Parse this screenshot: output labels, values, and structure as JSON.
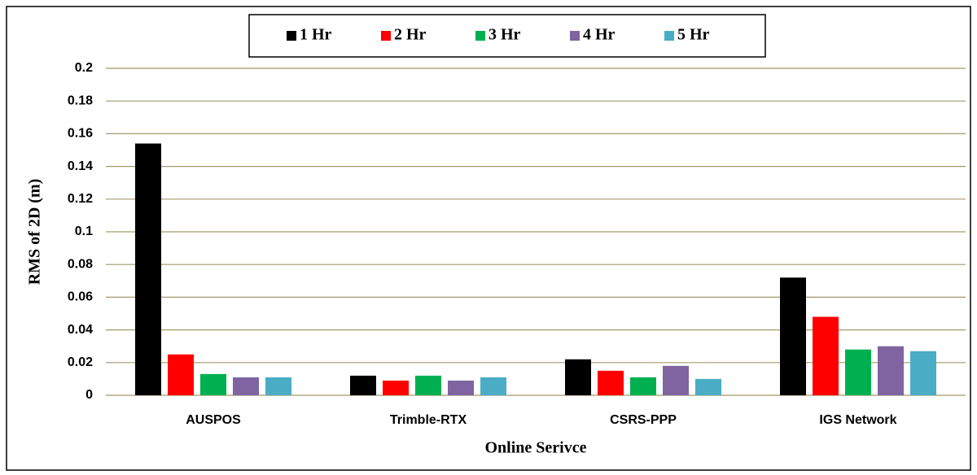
{
  "chart_data": {
    "type": "bar",
    "x_label": "Online Serivce",
    "y_label": "RMS of  2D (m)",
    "categories": [
      "AUSPOS",
      "Trimble-RTX",
      "CSRS-PPP",
      "IGS Network"
    ],
    "series": [
      {
        "name": "1 Hr",
        "color": "#000000",
        "values": [
          0.154,
          0.012,
          0.022,
          0.072
        ]
      },
      {
        "name": "2 Hr",
        "color": "#ff0000",
        "values": [
          0.025,
          0.009,
          0.015,
          0.048
        ]
      },
      {
        "name": "3 Hr",
        "color": "#00b050",
        "values": [
          0.013,
          0.012,
          0.011,
          0.028
        ]
      },
      {
        "name": "4 Hr",
        "color": "#8064a2",
        "values": [
          0.011,
          0.009,
          0.018,
          0.03
        ]
      },
      {
        "name": "5 Hr",
        "color": "#4bacc6",
        "values": [
          0.011,
          0.011,
          0.01,
          0.027
        ]
      }
    ],
    "ylim": [
      0,
      0.2
    ],
    "yticks": [
      0,
      0.02,
      0.04,
      0.06,
      0.08,
      0.1,
      0.12,
      0.14,
      0.16,
      0.18,
      0.2
    ],
    "grid": true,
    "legend": "top"
  }
}
